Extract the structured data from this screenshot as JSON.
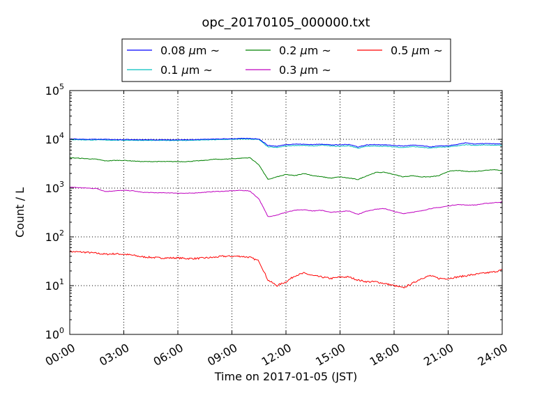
{
  "chart_data": {
    "type": "line",
    "title": "opc_20170105_000000.txt",
    "xlabel": "Time on 2017-01-05 (JST)",
    "ylabel": "Count / L",
    "x_unit": "hours",
    "xlim": [
      0,
      24
    ],
    "ylim": [
      1,
      100000
    ],
    "y_scale": "log",
    "grid": true,
    "legend_position": "top-center, outside plot",
    "x_ticks": [
      {
        "value": 0,
        "label": "00:00"
      },
      {
        "value": 3,
        "label": "03:00"
      },
      {
        "value": 6,
        "label": "06:00"
      },
      {
        "value": 9,
        "label": "09:00"
      },
      {
        "value": 12,
        "label": "12:00"
      },
      {
        "value": 15,
        "label": "15:00"
      },
      {
        "value": 18,
        "label": "18:00"
      },
      {
        "value": 21,
        "label": "21:00"
      },
      {
        "value": 24,
        "label": "24:00"
      }
    ],
    "y_ticks": [
      {
        "value": 1,
        "base": "10",
        "exp": "0"
      },
      {
        "value": 10,
        "base": "10",
        "exp": "1"
      },
      {
        "value": 100,
        "base": "10",
        "exp": "2"
      },
      {
        "value": 1000,
        "base": "10",
        "exp": "3"
      },
      {
        "value": 10000,
        "base": "10",
        "exp": "4"
      },
      {
        "value": 100000,
        "base": "10",
        "exp": "5"
      }
    ],
    "x": [
      0,
      0.5,
      1,
      1.5,
      2,
      2.5,
      3,
      3.5,
      4,
      4.5,
      5,
      5.5,
      6,
      6.5,
      7,
      7.5,
      8,
      8.5,
      9,
      9.5,
      10,
      10.5,
      11,
      11.5,
      12,
      12.5,
      13,
      13.5,
      14,
      14.5,
      15,
      15.5,
      16,
      16.5,
      17,
      17.5,
      18,
      18.5,
      19,
      19.5,
      20,
      20.5,
      21,
      21.5,
      22,
      22.5,
      23,
      23.5,
      24
    ],
    "series": [
      {
        "name": "0.08 μm ~",
        "legend_text": "0.08 ",
        "color": "#0000ff",
        "values": [
          10200,
          10100,
          10000,
          10000,
          10000,
          9900,
          9900,
          9900,
          9800,
          9800,
          9800,
          9800,
          9800,
          9800,
          9900,
          10000,
          10100,
          10200,
          10300,
          10400,
          10400,
          10200,
          7500,
          7200,
          7800,
          8000,
          7900,
          7800,
          8000,
          7700,
          7700,
          7900,
          7000,
          7700,
          7800,
          7700,
          7500,
          7300,
          7600,
          7400,
          7000,
          7300,
          7400,
          7800,
          8500,
          8000,
          8200,
          8100,
          8000
        ]
      },
      {
        "name": "0.1 μm ~",
        "legend_text": "0.1 ",
        "color": "#00bfbf",
        "values": [
          9900,
          9800,
          9700,
          9700,
          9700,
          9600,
          9600,
          9600,
          9500,
          9500,
          9500,
          9500,
          9500,
          9500,
          9600,
          9700,
          9800,
          9900,
          10000,
          10100,
          10100,
          9900,
          7000,
          6800,
          7300,
          7500,
          7500,
          7300,
          7600,
          7300,
          7200,
          7400,
          6600,
          7200,
          7300,
          7200,
          7000,
          6800,
          7100,
          6900,
          6600,
          6900,
          7000,
          7300,
          7800,
          7500,
          7700,
          7600,
          7500
        ]
      },
      {
        "name": "0.2 μm ~",
        "legend_text": "0.2 ",
        "color": "#008000",
        "values": [
          4200,
          4100,
          4000,
          3900,
          3600,
          3700,
          3700,
          3600,
          3500,
          3500,
          3500,
          3500,
          3500,
          3500,
          3600,
          3700,
          3900,
          3900,
          4000,
          4100,
          4200,
          3000,
          1500,
          1700,
          1900,
          1800,
          2000,
          1800,
          1700,
          1600,
          1700,
          1600,
          1500,
          1800,
          2100,
          2100,
          1900,
          1700,
          1800,
          1700,
          1700,
          1800,
          2200,
          2300,
          2200,
          2200,
          2300,
          2400,
          2300
        ]
      },
      {
        "name": "0.3 μm ~",
        "legend_text": "0.3 ",
        "color": "#bf00bf",
        "values": [
          1050,
          1020,
          1000,
          980,
          850,
          880,
          900,
          880,
          820,
          810,
          800,
          800,
          790,
          780,
          800,
          820,
          850,
          860,
          880,
          900,
          870,
          600,
          260,
          280,
          320,
          350,
          360,
          340,
          350,
          320,
          330,
          340,
          290,
          340,
          370,
          380,
          330,
          300,
          320,
          340,
          380,
          400,
          430,
          460,
          450,
          450,
          480,
          500,
          520
        ]
      },
      {
        "name": "0.5 μm ~",
        "legend_text": "0.5 ",
        "color": "#ff0000",
        "values": [
          50,
          49,
          48,
          46,
          44,
          45,
          44,
          42,
          39,
          38,
          37,
          37,
          37,
          36,
          36,
          37,
          38,
          40,
          40,
          40,
          38,
          32,
          13,
          10,
          12,
          16,
          18,
          16,
          15,
          14,
          15,
          15,
          13,
          12,
          12,
          11,
          10,
          9,
          11,
          14,
          16,
          14,
          14,
          15,
          16,
          17,
          18,
          19,
          21
        ]
      }
    ]
  }
}
